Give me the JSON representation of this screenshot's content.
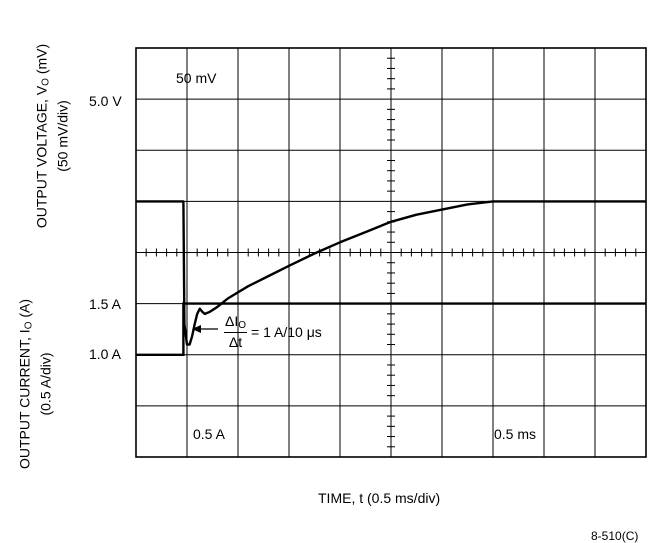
{
  "figure": {
    "ylabel_top_line1": "OUTPUT VOLTAGE, V",
    "ylabel_top_sub": "O",
    "ylabel_top_unit": " (mV)",
    "ylabel_top_line2": "(50 mV/div)",
    "ylabel_bottom_line1": "OUTPUT CURRENT, I",
    "ylabel_bottom_sub": "O",
    "ylabel_bottom_unit": " (A)",
    "ylabel_bottom_line2": "(0.5 A/div)",
    "xlabel": "TIME, t (0.5 ms/div)",
    "figure_ref": "8-510(C)",
    "colors": {
      "trace": "#000000",
      "grid": "#000000",
      "background": "#ffffff"
    }
  },
  "chart_data": {
    "type": "line",
    "grid": true,
    "x_divisions": 10,
    "y_divisions": 8,
    "time_per_div_ms": 0.5,
    "top_channel": {
      "scale_label": "50 mV",
      "level_label": "5.0 V",
      "volts_per_div_mV": 50,
      "reference_div": 3,
      "series": [
        {
          "x": [
            0,
            0.93,
            0.95,
            1.0,
            1.05,
            1.1,
            1.15,
            1.2,
            1.25,
            1.3,
            1.35,
            1.45,
            1.6,
            1.8,
            2.2,
            2.6,
            3.0,
            3.5,
            4.0,
            4.5,
            5.0,
            5.5,
            6.0,
            6.5,
            7.0,
            7.5,
            8.0,
            8.5,
            9.0,
            9.5,
            10.0
          ],
          "y_mV": [
            0,
            0,
            -120,
            -140,
            -140,
            -132,
            -120,
            -110,
            -105,
            -108,
            -110,
            -108,
            -103,
            -95,
            -83,
            -73,
            -63,
            -51,
            -40,
            -30,
            -20,
            -13,
            -8,
            -3,
            0,
            0,
            0,
            0,
            0,
            0,
            0
          ]
        }
      ]
    },
    "bottom_channel": {
      "scale_label": "0.5 A",
      "level_labels": [
        "1.5 A",
        "1.0 A"
      ],
      "amps_per_div": 0.5,
      "series": [
        {
          "x": [
            0,
            0.93,
            0.93,
            10.0
          ],
          "y_A": [
            1.0,
            1.0,
            1.5,
            1.5
          ]
        }
      ]
    },
    "annotations": {
      "time_scale_label": "0.5 ms",
      "slew_numerator": "ΔI",
      "slew_numerator_sub": "O",
      "slew_denominator": "Δt",
      "slew_value": "= 1 A/10 μs"
    }
  }
}
